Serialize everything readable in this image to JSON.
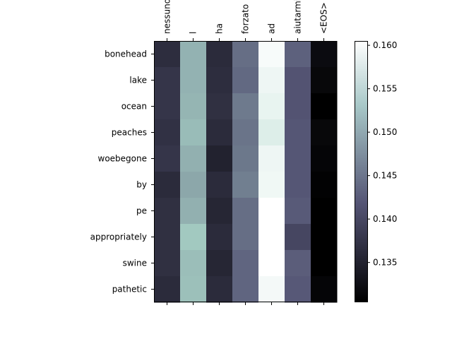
{
  "chart_data": {
    "type": "heatmap",
    "title": "",
    "xlabel": "",
    "ylabel": "",
    "x_categories": [
      "nessuno",
      "l",
      "ha",
      "forzato",
      "ad",
      "aiutarmi",
      "<EOS>"
    ],
    "y_categories": [
      "bonehead",
      "lake",
      "ocean",
      "peaches",
      "woebegone",
      "by",
      "pe",
      "appropriately",
      "swine",
      "pathetic"
    ],
    "values": [
      [
        0.1365,
        0.15,
        0.1362,
        0.144,
        0.1598,
        0.1428,
        0.132
      ],
      [
        0.1375,
        0.15,
        0.1365,
        0.1435,
        0.159,
        0.1415,
        0.1315
      ],
      [
        0.1375,
        0.1502,
        0.1368,
        0.145,
        0.1585,
        0.1415,
        0.1305
      ],
      [
        0.137,
        0.1508,
        0.1362,
        0.1445,
        0.1575,
        0.1418,
        0.1315
      ],
      [
        0.1375,
        0.1498,
        0.135,
        0.1448,
        0.159,
        0.1418,
        0.1312
      ],
      [
        0.1362,
        0.149,
        0.1362,
        0.1455,
        0.1592,
        0.1418,
        0.1308
      ],
      [
        0.1368,
        0.1498,
        0.1355,
        0.144,
        0.1605,
        0.1422,
        0.1305
      ],
      [
        0.1368,
        0.152,
        0.1362,
        0.144,
        0.1605,
        0.1398,
        0.1305
      ],
      [
        0.1368,
        0.151,
        0.1355,
        0.1432,
        0.1605,
        0.1425,
        0.1305
      ],
      [
        0.1362,
        0.1512,
        0.1362,
        0.1432,
        0.1595,
        0.142,
        0.1312
      ]
    ],
    "colormap": "bone",
    "color_range": [
      0.1305,
      0.1605
    ],
    "colorbar_ticks": [
      "0.135",
      "0.140",
      "0.145",
      "0.150",
      "0.155",
      "0.160"
    ],
    "colorbar_tick_values": [
      0.135,
      0.14,
      0.145,
      0.15,
      0.155,
      0.16
    ],
    "x_labels_rotation": 90,
    "x_labels_position": "top",
    "colorbar": true,
    "grid": false
  }
}
